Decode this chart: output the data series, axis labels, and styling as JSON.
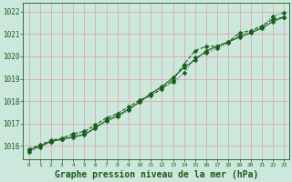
{
  "bg_color": "#cce8dc",
  "grid_color": "#dda0a0",
  "line_color": "#1a5c1a",
  "xlabel": "Graphe pression niveau de la mer (hPa)",
  "xlabel_fontsize": 7,
  "ylim": [
    1015.4,
    1022.4
  ],
  "xlim": [
    -0.5,
    23.5
  ],
  "yticks": [
    1016,
    1017,
    1018,
    1019,
    1020,
    1021,
    1022
  ],
  "xticks": [
    0,
    1,
    2,
    3,
    4,
    5,
    6,
    7,
    8,
    9,
    10,
    11,
    12,
    13,
    14,
    15,
    16,
    17,
    18,
    19,
    20,
    21,
    22,
    23
  ],
  "line1_x": [
    0,
    1,
    2,
    3,
    4,
    5,
    6,
    7,
    8,
    9,
    10,
    11,
    12,
    13,
    14,
    15,
    16,
    17,
    18,
    19,
    20,
    21,
    22,
    23
  ],
  "line1_y": [
    1015.85,
    1016.05,
    1016.25,
    1016.35,
    1016.55,
    1016.65,
    1016.95,
    1017.25,
    1017.45,
    1017.75,
    1018.05,
    1018.25,
    1018.55,
    1018.95,
    1019.65,
    1020.25,
    1020.45,
    1020.45,
    1020.65,
    1021.05,
    1021.15,
    1021.35,
    1021.65,
    1021.75
  ],
  "line2_x": [
    0,
    1,
    2,
    3,
    4,
    5,
    6,
    7,
    8,
    9,
    10,
    11,
    12,
    13,
    14,
    15,
    16,
    17,
    18,
    19,
    20,
    21,
    22,
    23
  ],
  "line2_y": [
    1015.8,
    1016.0,
    1016.2,
    1016.3,
    1016.4,
    1016.5,
    1016.8,
    1017.15,
    1017.35,
    1017.65,
    1017.95,
    1018.35,
    1018.65,
    1019.05,
    1019.5,
    1019.85,
    1020.25,
    1020.45,
    1020.65,
    1020.85,
    1021.05,
    1021.25,
    1021.55,
    1021.75
  ],
  "line3_x": [
    0,
    1,
    2,
    3,
    4,
    5,
    6,
    7,
    8,
    9,
    10,
    11,
    12,
    13,
    14,
    15,
    16,
    17,
    18,
    19,
    20,
    21,
    22,
    23
  ],
  "line3_y": [
    1015.75,
    1015.95,
    1016.2,
    1016.3,
    1016.45,
    1016.55,
    1016.85,
    1017.1,
    1017.3,
    1017.6,
    1018.0,
    1018.3,
    1018.6,
    1018.85,
    1019.25,
    1019.95,
    1020.15,
    1020.35,
    1020.6,
    1020.95,
    1021.1,
    1021.3,
    1021.8,
    1021.95
  ]
}
